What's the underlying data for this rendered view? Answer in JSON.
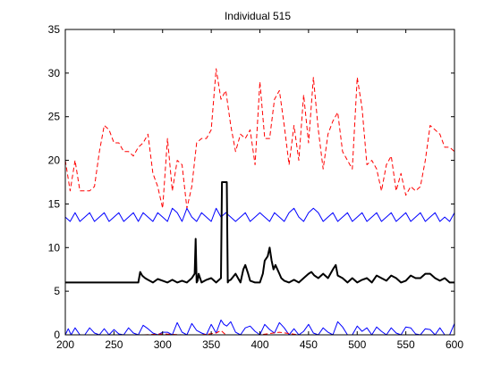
{
  "chart_data": {
    "type": "line",
    "title": "Individual 515",
    "xlabel": "",
    "ylabel": "",
    "xlim": [
      200,
      600
    ],
    "ylim": [
      0,
      35
    ],
    "xticks": [
      "200",
      "250",
      "300",
      "350",
      "400",
      "450",
      "500",
      "550",
      "600"
    ],
    "yticks": [
      "0",
      "5",
      "10",
      "15",
      "20",
      "25",
      "30",
      "35"
    ],
    "grid": false,
    "legend": "none",
    "series": [
      {
        "color": "#ff0000",
        "style": "dashed",
        "x": [
          200,
          205,
          210,
          215,
          220,
          225,
          230,
          235,
          240,
          245,
          250,
          255,
          260,
          265,
          270,
          275,
          280,
          285,
          290,
          295,
          300,
          305,
          310,
          315,
          320,
          325,
          330,
          335,
          340,
          345,
          350,
          355,
          360,
          365,
          370,
          375,
          380,
          385,
          390,
          395,
          400,
          405,
          410,
          415,
          420,
          425,
          430,
          435,
          440,
          445,
          450,
          455,
          460,
          465,
          470,
          475,
          480,
          485,
          490,
          495,
          500,
          505,
          510,
          515,
          520,
          525,
          530,
          535,
          540,
          545,
          550,
          555,
          560,
          565,
          570,
          575,
          580,
          585,
          590,
          595,
          600
        ],
        "y": [
          20,
          16.5,
          20,
          16.5,
          16.5,
          16.5,
          17,
          21,
          24,
          23.5,
          22,
          22,
          21,
          21,
          20.5,
          21.5,
          22,
          23,
          18.5,
          17,
          14.5,
          22.5,
          16.5,
          20,
          19.5,
          14.5,
          17,
          22,
          22.5,
          22.5,
          23.5,
          30.5,
          27,
          28,
          24,
          21,
          23,
          22.5,
          23.5,
          19.5,
          29,
          22.5,
          22.5,
          27,
          28,
          24,
          19.5,
          24,
          20,
          27.5,
          22,
          29.5,
          23.5,
          19,
          23,
          24.5,
          25.5,
          21,
          20,
          19,
          29.5,
          26,
          19.5,
          20,
          19,
          16.5,
          19.5,
          20.5,
          16.5,
          18.5,
          16,
          17,
          16.5,
          17,
          20,
          24,
          23.5,
          23,
          21.5,
          21.5,
          21
        ]
      },
      {
        "color": "#0000ff",
        "style": "solid",
        "x": [
          200,
          205,
          210,
          215,
          220,
          225,
          230,
          235,
          240,
          245,
          250,
          255,
          260,
          265,
          270,
          275,
          280,
          285,
          290,
          295,
          300,
          305,
          310,
          315,
          320,
          325,
          330,
          335,
          340,
          345,
          350,
          355,
          360,
          365,
          370,
          375,
          380,
          385,
          390,
          395,
          400,
          405,
          410,
          415,
          420,
          425,
          430,
          435,
          440,
          445,
          450,
          455,
          460,
          465,
          470,
          475,
          480,
          485,
          490,
          495,
          500,
          505,
          510,
          515,
          520,
          525,
          530,
          535,
          540,
          545,
          550,
          555,
          560,
          565,
          570,
          575,
          580,
          585,
          590,
          595,
          600
        ],
        "y": [
          13.5,
          13,
          14,
          13,
          13.5,
          14,
          13,
          13.5,
          14,
          13,
          13.5,
          14,
          13,
          13.5,
          14,
          13,
          14,
          13.5,
          13,
          14,
          13.5,
          13,
          14.5,
          14,
          13,
          14.5,
          13.5,
          13,
          14,
          13.5,
          13,
          14.5,
          13.5,
          14,
          13.5,
          13,
          13.5,
          14,
          13,
          13.5,
          14,
          13.5,
          13,
          14,
          13.5,
          13,
          14,
          14.5,
          13.5,
          13,
          14,
          14.5,
          14,
          13,
          13.5,
          14,
          13,
          13.5,
          14,
          13,
          13.5,
          14,
          13,
          13.5,
          14,
          13,
          13.5,
          14,
          13,
          13.5,
          14,
          13,
          13.5,
          14,
          13,
          13.5,
          14,
          13,
          13.5,
          13,
          14
        ]
      },
      {
        "color": "#000000",
        "style": "solid-thick",
        "x": [
          200,
          210,
          220,
          230,
          240,
          250,
          260,
          270,
          275,
          277,
          279,
          282,
          285,
          290,
          295,
          300,
          305,
          310,
          315,
          320,
          325,
          330,
          333,
          334,
          335,
          336,
          337,
          340,
          345,
          350,
          355,
          360,
          361,
          362,
          363,
          365,
          366,
          367,
          368,
          370,
          375,
          380,
          383,
          385,
          388,
          390,
          395,
          400,
          403,
          405,
          408,
          410,
          412,
          414,
          416,
          418,
          420,
          422,
          425,
          430,
          435,
          440,
          445,
          450,
          453,
          456,
          460,
          465,
          470,
          475,
          478,
          480,
          485,
          490,
          495,
          500,
          505,
          510,
          515,
          520,
          525,
          530,
          535,
          540,
          545,
          550,
          555,
          560,
          565,
          570,
          575,
          580,
          585,
          590,
          595,
          600
        ],
        "y": [
          6,
          6,
          6,
          6,
          6,
          6,
          6,
          6,
          6,
          7.2,
          6.8,
          6.5,
          6.3,
          6,
          6.4,
          6.2,
          6,
          6.3,
          6,
          6.2,
          6,
          6.5,
          7,
          11,
          6,
          6.2,
          7,
          6,
          6.3,
          6.5,
          6,
          6.5,
          17.5,
          17.5,
          17.5,
          17.5,
          17.5,
          6,
          6.2,
          6.3,
          7,
          6,
          7.5,
          8,
          7,
          6.2,
          6,
          6,
          7,
          8.5,
          9,
          10,
          8.5,
          7.5,
          8,
          7.5,
          7,
          6.5,
          6.2,
          6,
          6.3,
          6,
          6.5,
          7,
          7.2,
          6.8,
          6.5,
          7,
          6.5,
          7.5,
          8,
          6.8,
          6.5,
          6,
          6.5,
          6,
          6.3,
          6.5,
          6,
          6.8,
          6.5,
          6.2,
          6.8,
          6.5,
          6,
          6.2,
          6.8,
          6.5,
          6.5,
          7,
          7,
          6.5,
          6.2,
          6.5,
          6,
          6
        ]
      },
      {
        "color": "#0000ff",
        "style": "solid",
        "x": [
          200,
          203,
          206,
          210,
          215,
          220,
          225,
          230,
          235,
          240,
          245,
          250,
          255,
          260,
          265,
          270,
          275,
          280,
          285,
          290,
          295,
          300,
          305,
          310,
          315,
          320,
          325,
          330,
          335,
          340,
          345,
          350,
          355,
          360,
          363,
          366,
          370,
          375,
          380,
          385,
          390,
          395,
          400,
          405,
          410,
          415,
          420,
          425,
          430,
          435,
          440,
          445,
          450,
          455,
          460,
          465,
          470,
          475,
          480,
          485,
          490,
          495,
          500,
          505,
          510,
          515,
          520,
          525,
          530,
          535,
          540,
          545,
          550,
          555,
          560,
          565,
          570,
          575,
          580,
          585,
          590,
          595,
          600
        ],
        "y": [
          0,
          0.7,
          0,
          0.8,
          0,
          0,
          0.8,
          0.2,
          0,
          0.7,
          0,
          0.6,
          0.1,
          0,
          0.8,
          0.2,
          0,
          1.1,
          0.7,
          0.2,
          0,
          0.3,
          0.3,
          0,
          1.4,
          0.3,
          0,
          1.3,
          0.5,
          0.2,
          0,
          1.2,
          0.2,
          1.7,
          1.2,
          1,
          1.5,
          0.3,
          0,
          0.8,
          1,
          0.4,
          0,
          1.2,
          0.6,
          0.2,
          1.4,
          0.8,
          0,
          0.7,
          0,
          0.4,
          1.2,
          0.2,
          0,
          0.8,
          0.3,
          0,
          1.5,
          0.9,
          0,
          0,
          1,
          0.4,
          0.8,
          0,
          0.9,
          0.4,
          0,
          0.8,
          0.2,
          0,
          0.9,
          0.8,
          0.1,
          0,
          0.7,
          0.6,
          0,
          0.8,
          0,
          0,
          1.3
        ]
      },
      {
        "color": "#ff0000",
        "style": "dashed",
        "x": [
          200,
          220,
          240,
          260,
          280,
          300,
          320,
          340,
          355,
          360,
          365,
          370,
          380,
          400,
          420,
          440,
          460,
          480,
          500,
          520,
          540,
          560,
          580,
          600
        ],
        "y": [
          0,
          0,
          0,
          0,
          0,
          0.1,
          0,
          0,
          0.2,
          0.5,
          0,
          0,
          0,
          0,
          0.3,
          0,
          0,
          0,
          0,
          0,
          0,
          0,
          0,
          0
        ]
      }
    ]
  }
}
